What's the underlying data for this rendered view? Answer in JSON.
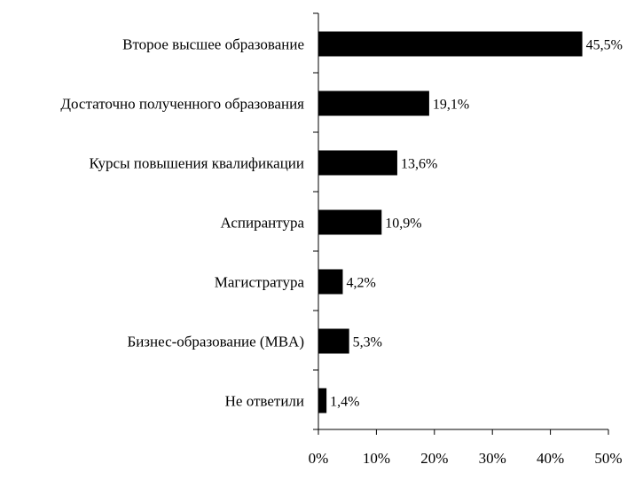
{
  "chart_data": {
    "type": "bar",
    "orientation": "horizontal",
    "title": "",
    "xlabel": "",
    "ylabel": "",
    "categories": [
      "Второе высшее образование",
      "Достаточно полученного образования",
      "Курсы повышения квалификации",
      "Аспирантура",
      "Магистратура",
      "Бизнес-образование (MBA)",
      "Не ответили"
    ],
    "values": [
      45.5,
      19.1,
      13.6,
      10.9,
      4.2,
      5.3,
      1.4
    ],
    "value_labels": [
      "45,5%",
      "19,1%",
      "13,6%",
      "10,9%",
      "4,2%",
      "5,3%",
      "1,4%"
    ],
    "xlim": [
      0,
      50
    ],
    "xticks": [
      0,
      10,
      20,
      30,
      40,
      50
    ],
    "xtick_labels": [
      "0%",
      "10%",
      "20%",
      "30%",
      "40%",
      "50%"
    ],
    "grid": false,
    "bar_color": "#000000"
  }
}
